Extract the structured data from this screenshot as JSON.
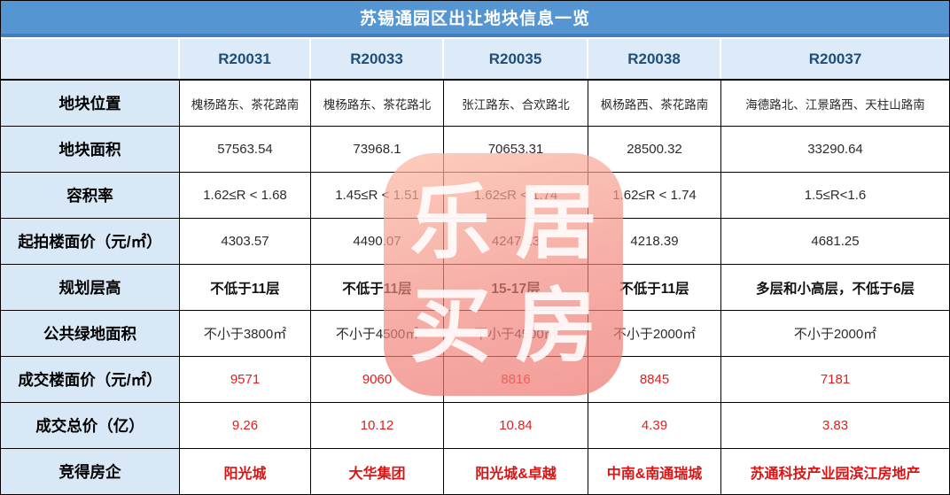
{
  "title": "苏锡通园区出让地块信息一览",
  "colors": {
    "title_bar_bg": "#5596d2",
    "title_bar_edge": "#3f7fbd",
    "header_cell_bg": "#dcebf7",
    "header_text": "#1f4e79",
    "label_cell_bg": "#d9e8f6",
    "value_text": "#2b2b2b",
    "highlight_red": "#e02020",
    "border": "#000000",
    "watermark_pink": "#f2877d",
    "watermark_text": "#ffffff"
  },
  "watermark": {
    "chars": [
      "乐",
      "居",
      "买",
      "房"
    ]
  },
  "table": {
    "plot_ids": [
      "R20031",
      "R20033",
      "R20035",
      "R20038",
      "R20037"
    ],
    "rows": [
      {
        "label": "地块位置",
        "style": "small",
        "values": [
          "槐杨路东、茶花路南",
          "槐杨路东、茶花路北",
          "张江路东、合欢路北",
          "枫杨路西、茶花路南",
          "海德路北、江景路西、天柱山路南"
        ]
      },
      {
        "label": "地块面积",
        "style": "normal",
        "values": [
          "57563.54",
          "73968.1",
          "70653.31",
          "28500.32",
          "33290.64"
        ]
      },
      {
        "label": "容积率",
        "style": "normal",
        "values": [
          "1.62≤R < 1.68",
          "1.45≤R < 1.51",
          "1.62≤R < 1.74",
          "1.62≤R < 1.74",
          "1.5≤R<1.6"
        ]
      },
      {
        "label": "起拍楼面价（元/㎡）",
        "style": "normal",
        "values": [
          "4303.57",
          "4490.07",
          "4247.13",
          "4218.39",
          "4681.25"
        ]
      },
      {
        "label": "规划层高",
        "style": "bold",
        "values": [
          "不低于11层",
          "不低于11层",
          "15-17层",
          "不低于11层",
          "多层和小高层，不低于6层"
        ]
      },
      {
        "label": "公共绿地面积",
        "style": "normal",
        "values": [
          "不小于3800㎡",
          "不小于4500㎡",
          "不小于4500㎡",
          "不小于2000㎡",
          "不小于2000㎡"
        ]
      },
      {
        "label": "成交楼面价（元/㎡）",
        "style": "red",
        "values": [
          "9571",
          "9060",
          "8816",
          "8845",
          "7181"
        ]
      },
      {
        "label": "成交总价（亿）",
        "style": "red",
        "values": [
          "9.26",
          "10.12",
          "10.84",
          "4.39",
          "3.83"
        ]
      },
      {
        "label": "竞得房企",
        "style": "red-bold",
        "values": [
          "阳光城",
          "大华集团",
          "阳光城&卓越",
          "中南&南通瑞城",
          "苏通科技产业园滨江房地产"
        ]
      }
    ]
  },
  "chart_data": {
    "type": "table",
    "title": "苏锡通园区出让地块信息一览",
    "columns": [
      "",
      "R20031",
      "R20033",
      "R20035",
      "R20038",
      "R20037"
    ],
    "rows": [
      [
        "地块位置",
        "槐杨路东、茶花路南",
        "槐杨路东、茶花路北",
        "张江路东、合欢路北",
        "枫杨路西、茶花路南",
        "海德路北、江景路西、天柱山路南"
      ],
      [
        "地块面积",
        57563.54,
        73968.1,
        70653.31,
        28500.32,
        33290.64
      ],
      [
        "容积率",
        "1.62≤R < 1.68",
        "1.45≤R < 1.51",
        "1.62≤R < 1.74",
        "1.62≤R < 1.74",
        "1.5≤R<1.6"
      ],
      [
        "起拍楼面价（元/㎡）",
        4303.57,
        4490.07,
        4247.13,
        4218.39,
        4681.25
      ],
      [
        "规划层高",
        "不低于11层",
        "不低于11层",
        "15-17层",
        "不低于11层",
        "多层和小高层，不低于6层"
      ],
      [
        "公共绿地面积",
        "不小于3800㎡",
        "不小于4500㎡",
        "不小于4500㎡",
        "不小于2000㎡",
        "不小于2000㎡"
      ],
      [
        "成交楼面价（元/㎡）",
        9571,
        9060,
        8816,
        8845,
        7181
      ],
      [
        "成交总价（亿）",
        9.26,
        10.12,
        10.84,
        4.39,
        3.83
      ],
      [
        "竞得房企",
        "阳光城",
        "大华集团",
        "阳光城&卓越",
        "中南&南通瑞城",
        "苏通科技产业园滨江房地产"
      ]
    ]
  }
}
